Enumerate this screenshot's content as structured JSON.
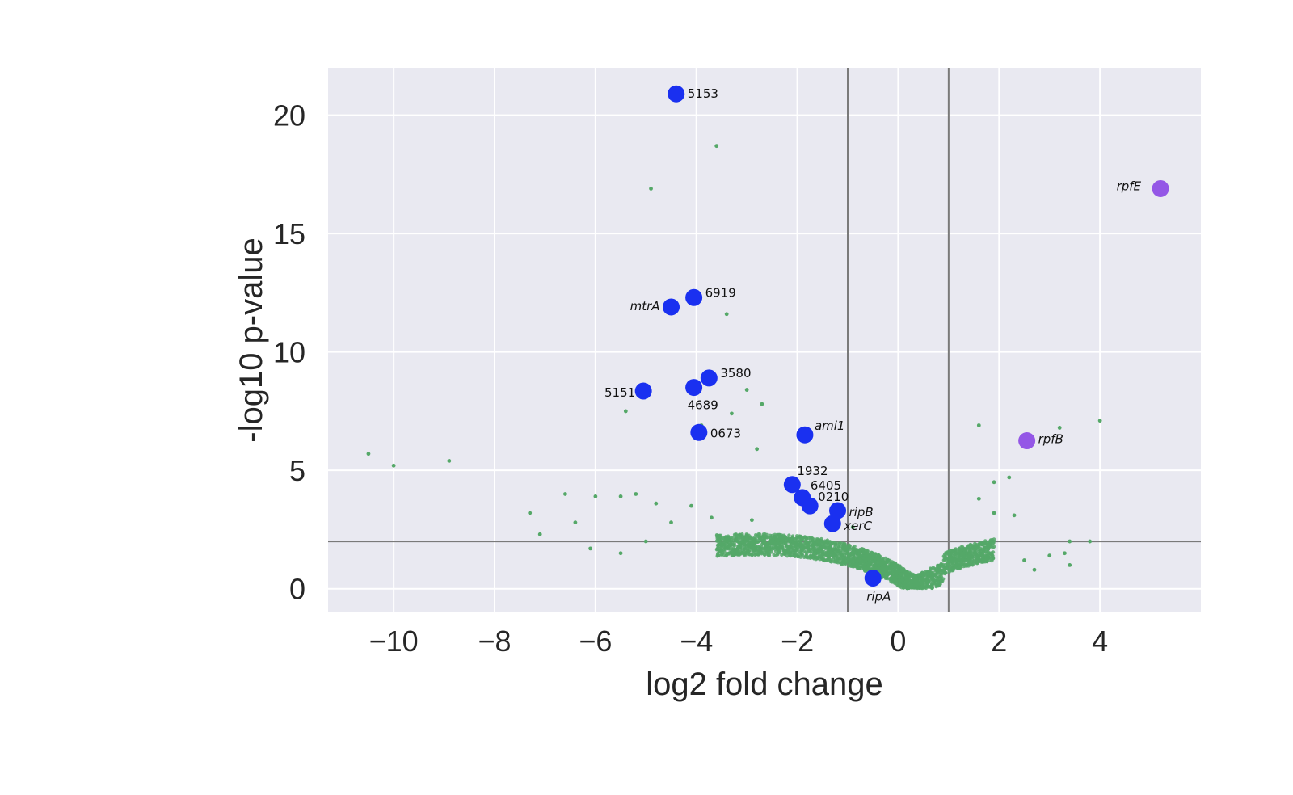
{
  "chart_data": {
    "type": "scatter",
    "title": "",
    "xlabel": "log2 fold change",
    "ylabel": "-log10 p-value",
    "xlim": [
      -11.3,
      6.0
    ],
    "ylim": [
      -1.0,
      22.0
    ],
    "xticks": [
      -10,
      -8,
      -6,
      -4,
      -2,
      0,
      2,
      4
    ],
    "xtick_labels": [
      "−10",
      "−8",
      "−6",
      "−4",
      "−2",
      "0",
      "2",
      "4"
    ],
    "yticks": [
      0,
      5,
      10,
      15,
      20
    ],
    "ytick_labels": [
      "0",
      "5",
      "10",
      "15",
      "20"
    ],
    "grid": true,
    "thresholds": {
      "vertical": [
        -1,
        1
      ],
      "horizontal": 2
    },
    "colors": {
      "background": "#e9e9f1",
      "grid": "#ffffff",
      "threshold": "#7a7a7a",
      "other_genes": "#55a868",
      "down": "#1a30f0",
      "up": "#9457e6"
    },
    "series": [
      {
        "role": "other genes",
        "points": [
          [
            -3.6,
            18.7
          ],
          [
            -4.9,
            16.9
          ],
          [
            -3.4,
            11.6
          ],
          [
            -3.0,
            8.4
          ],
          [
            -2.7,
            7.8
          ],
          [
            -3.3,
            7.4
          ],
          [
            -5.4,
            7.5
          ],
          [
            -3.9,
            6.9
          ],
          [
            -2.8,
            5.9
          ],
          [
            -10.5,
            5.7
          ],
          [
            -10.0,
            5.2
          ],
          [
            -8.9,
            5.4
          ],
          [
            -6.6,
            4.0
          ],
          [
            -6.0,
            3.9
          ],
          [
            -5.5,
            3.9
          ],
          [
            -5.2,
            4.0
          ],
          [
            -4.8,
            3.6
          ],
          [
            -7.3,
            3.2
          ],
          [
            -7.1,
            2.3
          ],
          [
            -6.4,
            2.8
          ],
          [
            -6.1,
            1.7
          ],
          [
            -5.5,
            1.5
          ],
          [
            -5.0,
            2.0
          ],
          [
            -4.5,
            2.8
          ],
          [
            -4.1,
            3.5
          ],
          [
            -3.7,
            3.0
          ],
          [
            -2.9,
            2.9
          ],
          [
            -1.6,
            2.0
          ],
          [
            -0.9,
            2.6
          ],
          [
            1.6,
            6.9
          ],
          [
            3.2,
            6.8
          ],
          [
            4.0,
            7.1
          ],
          [
            2.2,
            4.7
          ],
          [
            1.9,
            4.5
          ],
          [
            1.6,
            3.8
          ],
          [
            1.9,
            3.2
          ],
          [
            2.3,
            3.1
          ],
          [
            3.4,
            2.0
          ],
          [
            3.8,
            2.0
          ],
          [
            3.3,
            1.5
          ],
          [
            3.4,
            1.0
          ],
          [
            2.7,
            0.8
          ],
          [
            3.0,
            1.4
          ],
          [
            2.5,
            1.2
          ]
        ]
      },
      {
        "role": "downregulated",
        "points": [
          {
            "x": -4.4,
            "y": 20.9,
            "label": "5153"
          },
          {
            "x": -4.05,
            "y": 12.3,
            "label": "6919"
          },
          {
            "x": -4.5,
            "y": 11.9,
            "label": "mtrA",
            "italic": true
          },
          {
            "x": -3.75,
            "y": 8.9,
            "label": "3580"
          },
          {
            "x": -4.05,
            "y": 8.5,
            "label": "4689"
          },
          {
            "x": -5.05,
            "y": 8.35,
            "label": "5151"
          },
          {
            "x": -3.95,
            "y": 6.6,
            "label": "0673"
          },
          {
            "x": -1.85,
            "y": 6.5,
            "label": "ami1",
            "italic": true
          },
          {
            "x": -2.1,
            "y": 4.4,
            "label": "1932"
          },
          {
            "x": -1.9,
            "y": 3.85,
            "label": "6405"
          },
          {
            "x": -1.75,
            "y": 3.5,
            "label": "0210"
          },
          {
            "x": -1.2,
            "y": 3.3,
            "label": "ripB",
            "italic": true
          },
          {
            "x": -1.3,
            "y": 2.75,
            "label": "xerC",
            "italic": true
          },
          {
            "x": -0.5,
            "y": 0.45,
            "label": "ripA",
            "italic": true
          }
        ]
      },
      {
        "role": "upregulated",
        "points": [
          {
            "x": 5.2,
            "y": 16.9,
            "label": "rpfE",
            "italic": true
          },
          {
            "x": 2.55,
            "y": 6.25,
            "label": "rpfB",
            "italic": true
          }
        ]
      }
    ]
  }
}
